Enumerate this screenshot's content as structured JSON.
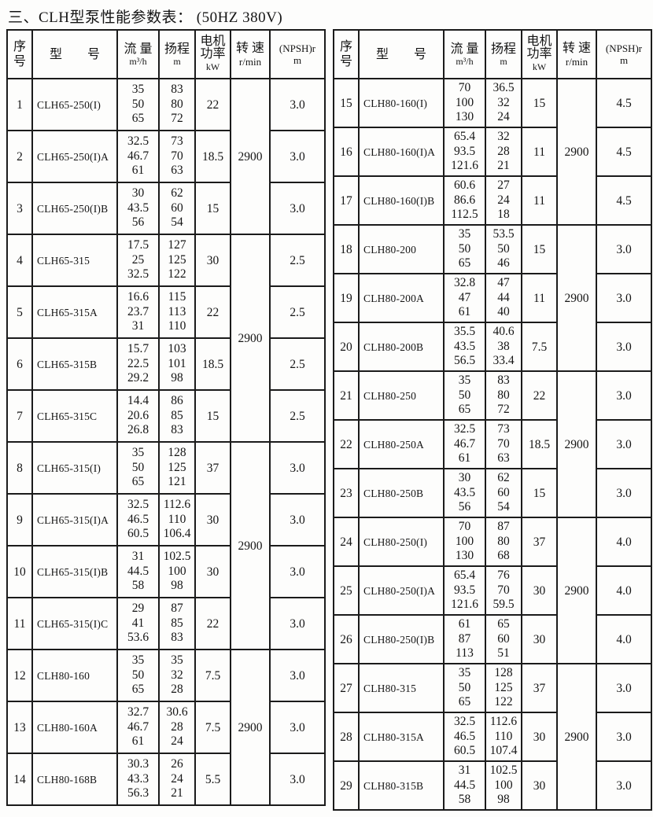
{
  "title": "三、CLH型泵性能参数表： (50HZ 380V)",
  "header": {
    "index": "序\n号",
    "model": "型　　号",
    "flow": "流 量",
    "flow_unit": "m³/h",
    "head": "扬程",
    "head_unit": "m",
    "power": "电机\n功率",
    "power_unit": "kW",
    "speed": "转 速",
    "speed_unit": "r/min",
    "npsh": "(NPSH)r",
    "npsh_unit": "m"
  },
  "left_table": {
    "rows": [
      {
        "no": "1",
        "model": "CLH65-250(I)",
        "flow": [
          "35",
          "50",
          "65"
        ],
        "head": [
          "83",
          "80",
          "72"
        ],
        "power": "22",
        "speed": "2900",
        "speed_span": 3,
        "npsh": "3.0"
      },
      {
        "no": "2",
        "model": "CLH65-250(I)A",
        "flow": [
          "32.5",
          "46.7",
          "61"
        ],
        "head": [
          "73",
          "70",
          "63"
        ],
        "power": "18.5",
        "npsh": "3.0"
      },
      {
        "no": "3",
        "model": "CLH65-250(I)B",
        "flow": [
          "30",
          "43.5",
          "56"
        ],
        "head": [
          "62",
          "60",
          "54"
        ],
        "power": "15",
        "npsh": "3.0"
      },
      {
        "no": "4",
        "model": "CLH65-315",
        "flow": [
          "17.5",
          "25",
          "32.5"
        ],
        "head": [
          "127",
          "125",
          "122"
        ],
        "power": "30",
        "speed": "2900",
        "speed_span": 4,
        "npsh": "2.5"
      },
      {
        "no": "5",
        "model": "CLH65-315A",
        "flow": [
          "16.6",
          "23.7",
          "31"
        ],
        "head": [
          "115",
          "113",
          "110"
        ],
        "power": "22",
        "npsh": "2.5"
      },
      {
        "no": "6",
        "model": "CLH65-315B",
        "flow": [
          "15.7",
          "22.5",
          "29.2"
        ],
        "head": [
          "103",
          "101",
          "98"
        ],
        "power": "18.5",
        "npsh": "2.5"
      },
      {
        "no": "7",
        "model": "CLH65-315C",
        "flow": [
          "14.4",
          "20.6",
          "26.8"
        ],
        "head": [
          "86",
          "85",
          "83"
        ],
        "power": "15",
        "npsh": "2.5"
      },
      {
        "no": "8",
        "model": "CLH65-315(I)",
        "flow": [
          "35",
          "50",
          "65"
        ],
        "head": [
          "128",
          "125",
          "121"
        ],
        "power": "37",
        "speed": "2900",
        "speed_span": 4,
        "npsh": "3.0"
      },
      {
        "no": "9",
        "model": "CLH65-315(I)A",
        "flow": [
          "32.5",
          "46.5",
          "60.5"
        ],
        "head": [
          "112.6",
          "110",
          "106.4"
        ],
        "power": "30",
        "npsh": "3.0"
      },
      {
        "no": "10",
        "model": "CLH65-315(I)B",
        "flow": [
          "31",
          "44.5",
          "58"
        ],
        "head": [
          "102.5",
          "100",
          "98"
        ],
        "power": "30",
        "npsh": "3.0"
      },
      {
        "no": "11",
        "model": "CLH65-315(I)C",
        "flow": [
          "29",
          "41",
          "53.6"
        ],
        "head": [
          "87",
          "85",
          "83"
        ],
        "power": "22",
        "npsh": "3.0"
      },
      {
        "no": "12",
        "model": "CLH80-160",
        "flow": [
          "35",
          "50",
          "65"
        ],
        "head": [
          "35",
          "32",
          "28"
        ],
        "power": "7.5",
        "speed": "2900",
        "speed_span": 3,
        "npsh": "3.0"
      },
      {
        "no": "13",
        "model": "CLH80-160A",
        "flow": [
          "32.7",
          "46.7",
          "61"
        ],
        "head": [
          "30.6",
          "28",
          "24"
        ],
        "power": "7.5",
        "npsh": "3.0"
      },
      {
        "no": "14",
        "model": "CLH80-168B",
        "flow": [
          "30.3",
          "43.3",
          "56.3"
        ],
        "head": [
          "26",
          "24",
          "21"
        ],
        "power": "5.5",
        "npsh": "3.0"
      }
    ]
  },
  "right_table": {
    "rows": [
      {
        "no": "15",
        "model": "CLH80-160(I)",
        "flow": [
          "70",
          "100",
          "130"
        ],
        "head": [
          "36.5",
          "32",
          "24"
        ],
        "power": "15",
        "speed": "2900",
        "speed_span": 3,
        "npsh": "4.5"
      },
      {
        "no": "16",
        "model": "CLH80-160(I)A",
        "flow": [
          "65.4",
          "93.5",
          "121.6"
        ],
        "head": [
          "32",
          "28",
          "21"
        ],
        "power": "11",
        "npsh": "4.5"
      },
      {
        "no": "17",
        "model": "CLH80-160(I)B",
        "flow": [
          "60.6",
          "86.6",
          "112.5"
        ],
        "head": [
          "27",
          "24",
          "18"
        ],
        "power": "11",
        "npsh": "4.5"
      },
      {
        "no": "18",
        "model": "CLH80-200",
        "flow": [
          "35",
          "50",
          "65"
        ],
        "head": [
          "53.5",
          "50",
          "46"
        ],
        "power": "15",
        "speed": "2900",
        "speed_span": 3,
        "npsh": "3.0"
      },
      {
        "no": "19",
        "model": "CLH80-200A",
        "flow": [
          "32.8",
          "47",
          "61"
        ],
        "head": [
          "47",
          "44",
          "40"
        ],
        "power": "11",
        "npsh": "3.0"
      },
      {
        "no": "20",
        "model": "CLH80-200B",
        "flow": [
          "35.5",
          "43.5",
          "56.5"
        ],
        "head": [
          "40.6",
          "38",
          "33.4"
        ],
        "power": "7.5",
        "npsh": "3.0"
      },
      {
        "no": "21",
        "model": "CLH80-250",
        "flow": [
          "35",
          "50",
          "65"
        ],
        "head": [
          "83",
          "80",
          "72"
        ],
        "power": "22",
        "speed": "2900",
        "speed_span": 3,
        "npsh": "3.0"
      },
      {
        "no": "22",
        "model": "CLH80-250A",
        "flow": [
          "32.5",
          "46.7",
          "61"
        ],
        "head": [
          "73",
          "70",
          "63"
        ],
        "power": "18.5",
        "npsh": "3.0"
      },
      {
        "no": "23",
        "model": "CLH80-250B",
        "flow": [
          "30",
          "43.5",
          "56"
        ],
        "head": [
          "62",
          "60",
          "54"
        ],
        "power": "15",
        "npsh": "3.0"
      },
      {
        "no": "24",
        "model": "CLH80-250(I)",
        "flow": [
          "70",
          "100",
          "130"
        ],
        "head": [
          "87",
          "80",
          "68"
        ],
        "power": "37",
        "speed": "2900",
        "speed_span": 3,
        "npsh": "4.0"
      },
      {
        "no": "25",
        "model": "CLH80-250(I)A",
        "flow": [
          "65.4",
          "93.5",
          "121.6"
        ],
        "head": [
          "76",
          "70",
          "59.5"
        ],
        "power": "30",
        "npsh": "4.0"
      },
      {
        "no": "26",
        "model": "CLH80-250(I)B",
        "flow": [
          "61",
          "87",
          "113"
        ],
        "head": [
          "65",
          "60",
          "51"
        ],
        "power": "30",
        "npsh": "4.0"
      },
      {
        "no": "27",
        "model": "CLH80-315",
        "flow": [
          "35",
          "50",
          "65"
        ],
        "head": [
          "128",
          "125",
          "122"
        ],
        "power": "37",
        "speed": "2900",
        "speed_span": 3,
        "npsh": "3.0"
      },
      {
        "no": "28",
        "model": "CLH80-315A",
        "flow": [
          "32.5",
          "46.5",
          "60.5"
        ],
        "head": [
          "112.6",
          "110",
          "107.4"
        ],
        "power": "30",
        "npsh": "3.0"
      },
      {
        "no": "29",
        "model": "CLH80-315B",
        "flow": [
          "31",
          "44.5",
          "58"
        ],
        "head": [
          "102.5",
          "100",
          "98"
        ],
        "power": "30",
        "npsh": "3.0"
      }
    ]
  }
}
